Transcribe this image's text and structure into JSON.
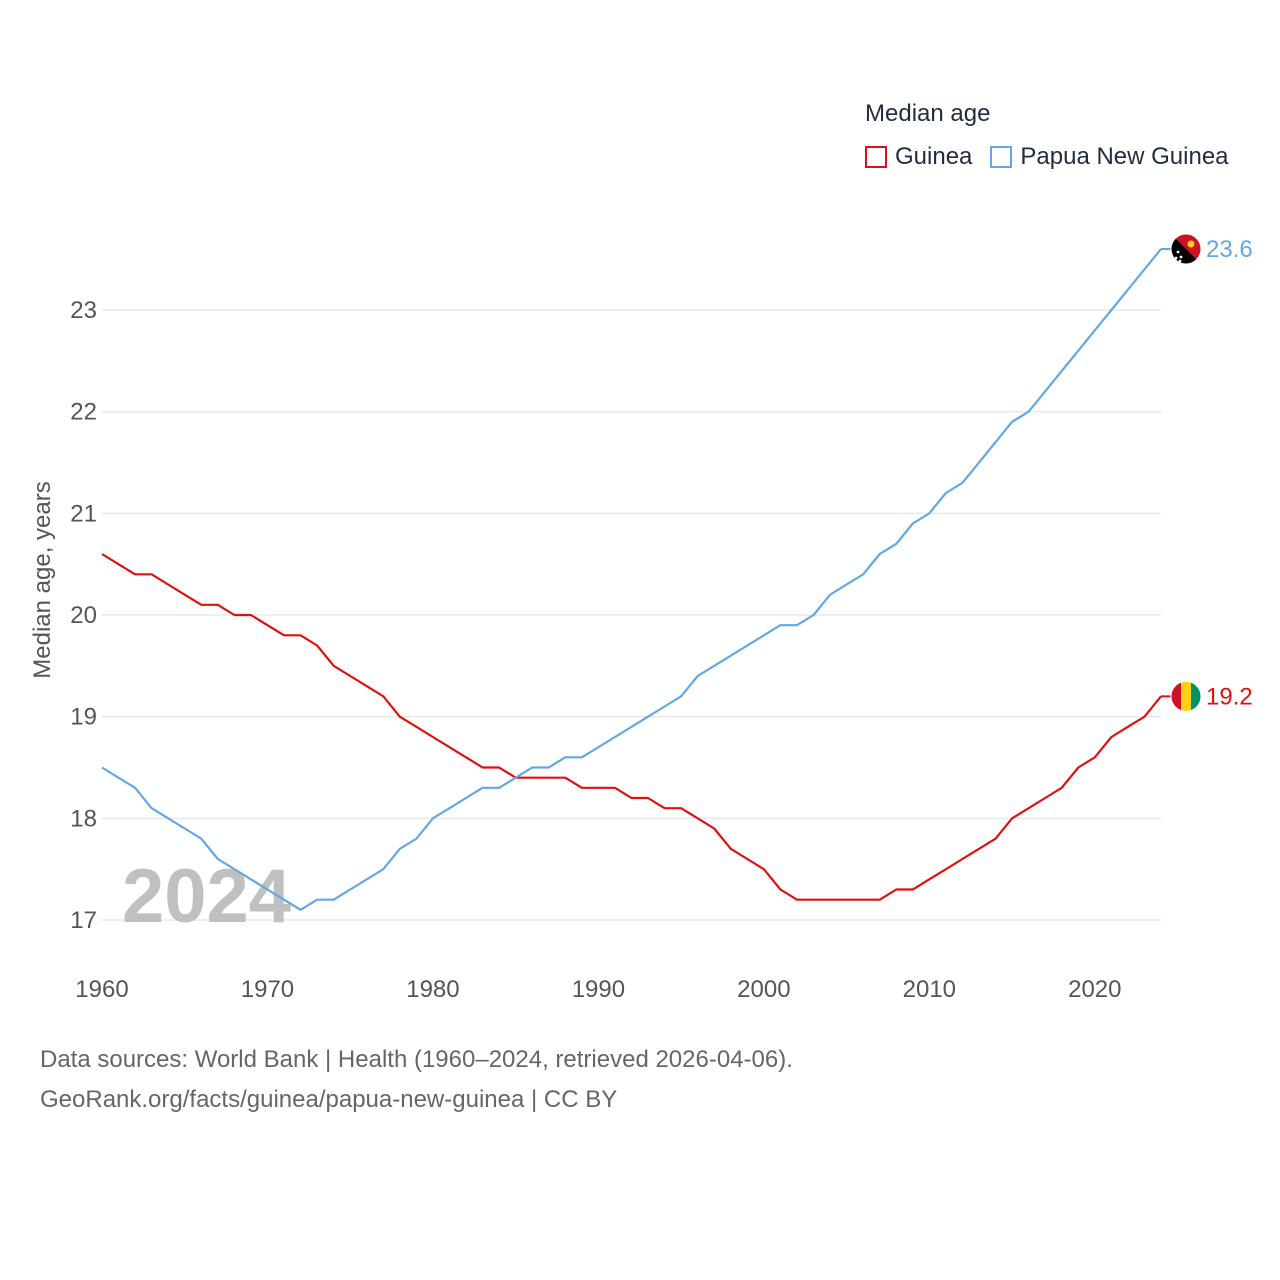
{
  "colors": {
    "guinea": "#e01010",
    "png": "#62a8e5",
    "grid": "#e8e8e8",
    "axis_text": "#555555",
    "year_watermark": "#c0c0c0"
  },
  "legend": {
    "title": "Median age",
    "items": [
      {
        "label": "Guinea",
        "icon": "square-outline"
      },
      {
        "label": "Papua New Guinea",
        "icon": "square-outline"
      }
    ]
  },
  "chart_data": {
    "type": "line",
    "title": "Median age",
    "xlabel": "",
    "ylabel": "Median age, years",
    "xlim": [
      1960,
      2024
    ],
    "ylim": [
      16.9,
      23.6
    ],
    "x_ticks": [
      1960,
      1970,
      1980,
      1990,
      2000,
      2010,
      2020
    ],
    "y_ticks": [
      17,
      18,
      19,
      20,
      21,
      22,
      23
    ],
    "grid": true,
    "year_label": "2024",
    "x": [
      1960,
      1961,
      1962,
      1963,
      1964,
      1965,
      1966,
      1967,
      1968,
      1969,
      1970,
      1971,
      1972,
      1973,
      1974,
      1975,
      1976,
      1977,
      1978,
      1979,
      1980,
      1981,
      1982,
      1983,
      1984,
      1985,
      1986,
      1987,
      1988,
      1989,
      1990,
      1991,
      1992,
      1993,
      1994,
      1995,
      1996,
      1997,
      1998,
      1999,
      2000,
      2001,
      2002,
      2003,
      2004,
      2005,
      2006,
      2007,
      2008,
      2009,
      2010,
      2011,
      2012,
      2013,
      2014,
      2015,
      2016,
      2017,
      2018,
      2019,
      2020,
      2021,
      2022,
      2023,
      2024
    ],
    "series": [
      {
        "name": "Guinea",
        "end_label": "19.2",
        "flag": "guinea-flag",
        "values": [
          20.6,
          20.5,
          20.4,
          20.4,
          20.3,
          20.2,
          20.1,
          20.1,
          20.0,
          20.0,
          19.9,
          19.8,
          19.8,
          19.7,
          19.5,
          19.4,
          19.3,
          19.2,
          19.0,
          18.9,
          18.8,
          18.7,
          18.6,
          18.5,
          18.5,
          18.4,
          18.4,
          18.4,
          18.4,
          18.3,
          18.3,
          18.3,
          18.2,
          18.2,
          18.1,
          18.1,
          18.0,
          17.9,
          17.7,
          17.6,
          17.5,
          17.3,
          17.2,
          17.2,
          17.2,
          17.2,
          17.2,
          17.2,
          17.3,
          17.3,
          17.4,
          17.5,
          17.6,
          17.7,
          17.8,
          18.0,
          18.1,
          18.2,
          18.3,
          18.5,
          18.6,
          18.8,
          18.9,
          19.0,
          19.2
        ]
      },
      {
        "name": "Papua New Guinea",
        "end_label": "23.6",
        "flag": "papua-new-guinea-flag",
        "values": [
          18.5,
          18.4,
          18.3,
          18.1,
          18.0,
          17.9,
          17.8,
          17.6,
          17.5,
          17.4,
          17.3,
          17.2,
          17.1,
          17.2,
          17.2,
          17.3,
          17.4,
          17.5,
          17.7,
          17.8,
          18.0,
          18.1,
          18.2,
          18.3,
          18.3,
          18.4,
          18.5,
          18.5,
          18.6,
          18.6,
          18.7,
          18.8,
          18.9,
          19.0,
          19.1,
          19.2,
          19.4,
          19.5,
          19.6,
          19.7,
          19.8,
          19.9,
          19.9,
          20.0,
          20.2,
          20.3,
          20.4,
          20.6,
          20.7,
          20.9,
          21.0,
          21.2,
          21.3,
          21.5,
          21.7,
          21.9,
          22.0,
          22.2,
          22.4,
          22.6,
          22.8,
          23.0,
          23.2,
          23.4,
          23.6
        ]
      }
    ]
  },
  "footer": {
    "sources": "Data sources: World Bank | Health (1960–2024, retrieved 2026-04-06).",
    "link": "GeoRank.org/facts/guinea/papua-new-guinea | CC BY"
  }
}
